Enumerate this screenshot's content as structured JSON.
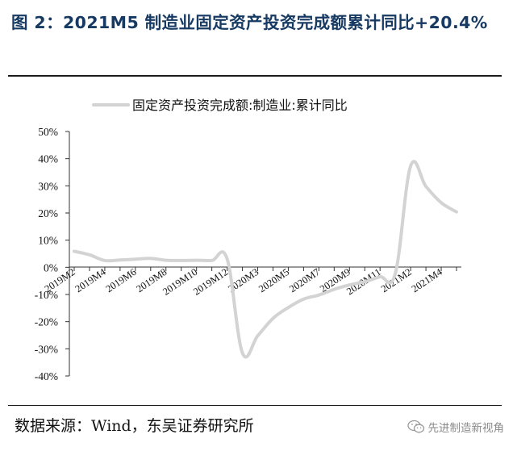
{
  "title": "图 2：2021M5 制造业固定资产投资完成额累计同比+20.4%",
  "source": "数据来源：Wind，东吴证券研究所",
  "watermark": "先进制造新视角",
  "chart_data": {
    "type": "line",
    "legend": {
      "placement": "top"
    },
    "grid": false,
    "ylim": [
      -40,
      50
    ],
    "y_ticks": [
      50,
      40,
      30,
      20,
      10,
      0,
      -10,
      -20,
      -30,
      -40
    ],
    "y_tick_labels": [
      "50%",
      "40%",
      "30%",
      "20%",
      "10%",
      "0%",
      "-10%",
      "-20%",
      "-30%",
      "-40%"
    ],
    "x_tick_labels": [
      "2019M2",
      "2019M4",
      "2019M6",
      "2019M8",
      "2019M10",
      "2019M12",
      "2020M3",
      "2020M5",
      "2020M7",
      "2020M9",
      "2020M11",
      "2021M2",
      "2021M4"
    ],
    "x": [
      "2019M2",
      "2019M3",
      "2019M4",
      "2019M5",
      "2019M6",
      "2019M7",
      "2019M8",
      "2019M9",
      "2019M10",
      "2019M11",
      "2019M12",
      "2020M2",
      "2020M3",
      "2020M4",
      "2020M5",
      "2020M6",
      "2020M7",
      "2020M8",
      "2020M9",
      "2020M10",
      "2020M11",
      "2020M12",
      "2021M2",
      "2021M3",
      "2021M4",
      "2021M5"
    ],
    "series": [
      {
        "name": "固定资产投资完成额:制造业:累计同比",
        "color": "#d3d3d3",
        "values": [
          5.9,
          4.6,
          2.5,
          2.7,
          3.0,
          3.3,
          2.6,
          2.5,
          2.6,
          2.5,
          3.1,
          -31.5,
          -25.2,
          -18.8,
          -14.8,
          -11.7,
          -10.2,
          -8.1,
          -6.5,
          -5.3,
          -3.5,
          -2.2,
          37.3,
          29.8,
          23.8,
          20.4
        ]
      }
    ]
  }
}
